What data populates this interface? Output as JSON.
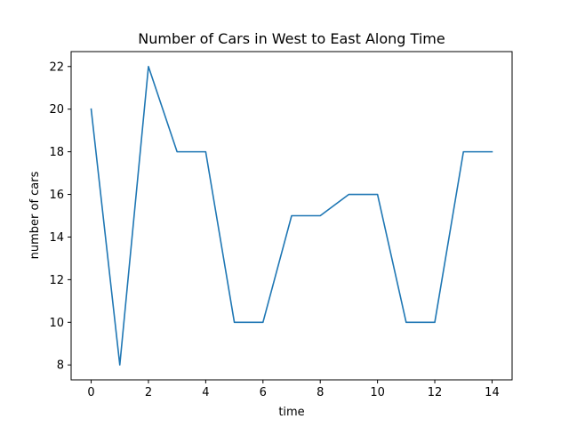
{
  "chart_data": {
    "type": "line",
    "title": "Number of Cars in West to East Along Time",
    "xlabel": "time",
    "ylabel": "number of cars",
    "x": [
      0,
      1,
      2,
      3,
      4,
      5,
      6,
      7,
      8,
      9,
      10,
      11,
      12,
      13,
      14
    ],
    "series": [
      {
        "values": [
          20,
          8,
          22,
          18,
          18,
          10,
          10,
          15,
          15,
          16,
          16,
          10,
          10,
          18,
          18
        ],
        "color": "#1f77b4"
      }
    ],
    "xlim": [
      -0.7,
      14.7
    ],
    "ylim": [
      7.3,
      22.7
    ],
    "xticks": [
      0,
      2,
      4,
      6,
      8,
      10,
      12,
      14
    ],
    "yticks": [
      8,
      10,
      12,
      14,
      16,
      18,
      20,
      22
    ],
    "grid": false,
    "legend": "none"
  }
}
